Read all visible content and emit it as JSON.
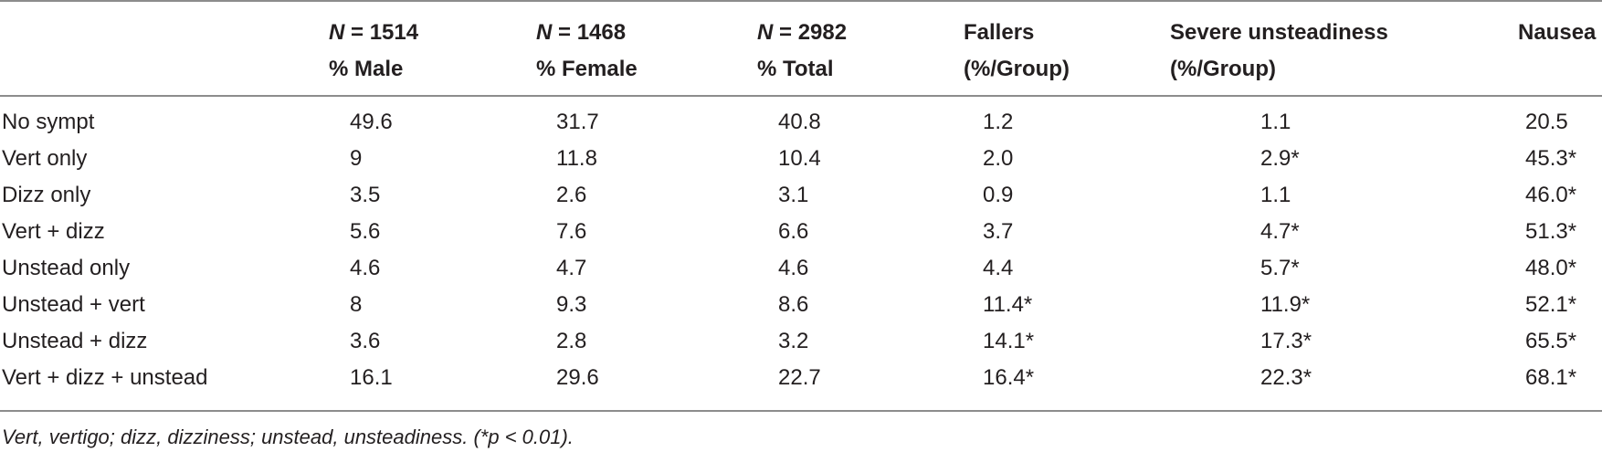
{
  "headers": {
    "male": {
      "n_label": "N",
      "n_value": "= 1514",
      "sub": "% Male"
    },
    "female": {
      "n_label": "N",
      "n_value": "= 1468",
      "sub": "% Female"
    },
    "total": {
      "n_label": "N",
      "n_value": "= 2982",
      "sub": "% Total"
    },
    "fallers": {
      "line1": "Fallers",
      "line2": "(%/Group)"
    },
    "severe": {
      "line1": "Severe unsteadiness",
      "line2": "(%/Group)"
    },
    "nausea": {
      "line1": "Nausea"
    }
  },
  "rows": [
    {
      "label": "No sympt",
      "male": "49.6",
      "female": "31.7",
      "total": "40.8",
      "fallers": "1.2",
      "severe": "1.1",
      "nausea": "20.5"
    },
    {
      "label": "Vert only",
      "male": "9",
      "female": "11.8",
      "total": "10.4",
      "fallers": "2.0",
      "severe": "2.9*",
      "nausea": "45.3*"
    },
    {
      "label": "Dizz only",
      "male": "3.5",
      "female": "2.6",
      "total": "3.1",
      "fallers": "0.9",
      "severe": "1.1",
      "nausea": "46.0*"
    },
    {
      "label": "Vert + dizz",
      "male": "5.6",
      "female": "7.6",
      "total": "6.6",
      "fallers": "3.7",
      "severe": "4.7*",
      "nausea": "51.3*"
    },
    {
      "label": "Unstead only",
      "male": "4.6",
      "female": "4.7",
      "total": "4.6",
      "fallers": "4.4",
      "severe": "5.7*",
      "nausea": "48.0*"
    },
    {
      "label": "Unstead + vert",
      "male": "8",
      "female": "9.3",
      "total": "8.6",
      "fallers": "11.4*",
      "severe": "11.9*",
      "nausea": "52.1*"
    },
    {
      "label": "Unstead + dizz",
      "male": "3.6",
      "female": "2.8",
      "total": "3.2",
      "fallers": "14.1*",
      "severe": "17.3*",
      "nausea": "65.5*"
    },
    {
      "label": "Vert + dizz + unstead",
      "male": "16.1",
      "female": "29.6",
      "total": "22.7",
      "fallers": "16.4*",
      "severe": "22.3*",
      "nausea": "68.1*"
    }
  ],
  "footnote": "Vert, vertigo; dizz, dizziness; unstead, unsteadiness. (*p < 0.01)."
}
